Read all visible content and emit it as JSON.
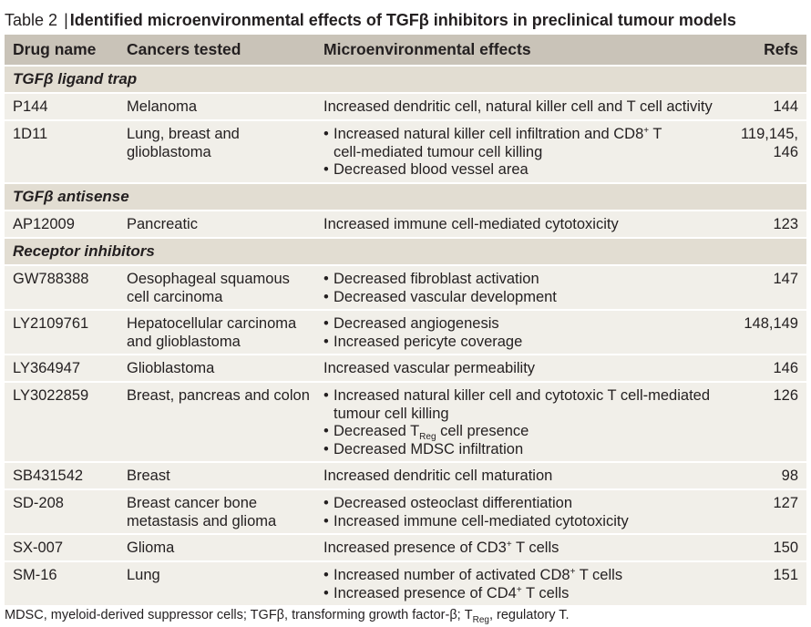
{
  "title": {
    "label": "Table 2",
    "separator": "|",
    "text": "Identified microenvironmental effects of TGFβ inhibitors in preclinical tumour models"
  },
  "columns": [
    "Drug name",
    "Cancers tested",
    "Microenvironmental effects",
    "Refs"
  ],
  "sections": [
    "TGFβ ligand trap",
    "TGFβ antisense",
    "Receptor inhibitors"
  ],
  "rows": [
    {
      "drug": "P144",
      "cancer": [
        "Melanoma"
      ],
      "effect": "Increased dendritic cell, natural killer cell and T cell activity",
      "refs": [
        "144"
      ]
    },
    {
      "drug": "1D11",
      "cancer": [
        "Lung, breast and",
        "glioblastoma"
      ],
      "bullets": [
        "Increased natural killer cell infiltration and CD8",
        "cell-mediated tumour cell killing",
        "Decreased blood vessel area"
      ],
      "refs": [
        "119,145,",
        "146"
      ]
    },
    {
      "drug": "AP12009",
      "cancer": [
        "Pancreatic"
      ],
      "effect": "Increased immune cell-mediated cytotoxicity",
      "refs": [
        "123"
      ]
    },
    {
      "drug": "GW788388",
      "cancer": [
        "Oesophageal squamous",
        "cell carcinoma"
      ],
      "bullets": [
        "Decreased fibroblast activation",
        "Decreased vascular development"
      ],
      "refs": [
        "147"
      ]
    },
    {
      "drug": "LY2109761",
      "cancer": [
        "Hepatocellular carcinoma",
        "and glioblastoma"
      ],
      "bullets": [
        "Decreased angiogenesis",
        "Increased pericyte coverage"
      ],
      "refs": [
        "148,149"
      ]
    },
    {
      "drug": "LY364947",
      "cancer": [
        "Glioblastoma"
      ],
      "effect": "Increased vascular permeability",
      "refs": [
        "146"
      ]
    },
    {
      "drug": "LY3022859",
      "cancer": [
        "Breast, pancreas and colon"
      ],
      "bullets": [
        "Increased natural killer cell and cytotoxic T cell-mediated",
        "tumour cell killing",
        "Decreased T",
        "cell presence",
        "Decreased MDSC infiltration"
      ],
      "refs": [
        "126"
      ]
    },
    {
      "drug": "SB431542",
      "cancer": [
        "Breast"
      ],
      "effect": "Increased dendritic cell maturation",
      "refs": [
        "98"
      ]
    },
    {
      "drug": "SD-208",
      "cancer": [
        "Breast cancer bone",
        "metastasis and glioma"
      ],
      "bullets": [
        "Decreased osteoclast differentiation",
        "Increased immune cell-mediated cytotoxicity"
      ],
      "refs": [
        "127"
      ]
    },
    {
      "drug": "SX-007",
      "cancer": [
        "Glioma"
      ],
      "effect": "Increased presence of CD3",
      "effect_tail": " T cells",
      "refs": [
        "150"
      ]
    },
    {
      "drug": "SM-16",
      "cancer": [
        "Lung"
      ],
      "bullets": [
        "Increased number of activated CD8",
        " T cells",
        "Increased presence of CD4",
        " T cells"
      ],
      "refs": [
        "151"
      ]
    }
  ],
  "sub_reg": "Reg",
  "sup_plus": "+",
  "tail_T": " T",
  "footnote": {
    "part1": "MDSC, myeloid-derived suppressor cells; TGFβ, transforming growth factor-β; T",
    "part2": ", regulatory T."
  },
  "colors": {
    "header_bg": "#c9c3b8",
    "section_bg": "#e2ddd2",
    "row_bg": "#f1efe9",
    "text": "#231f20"
  }
}
